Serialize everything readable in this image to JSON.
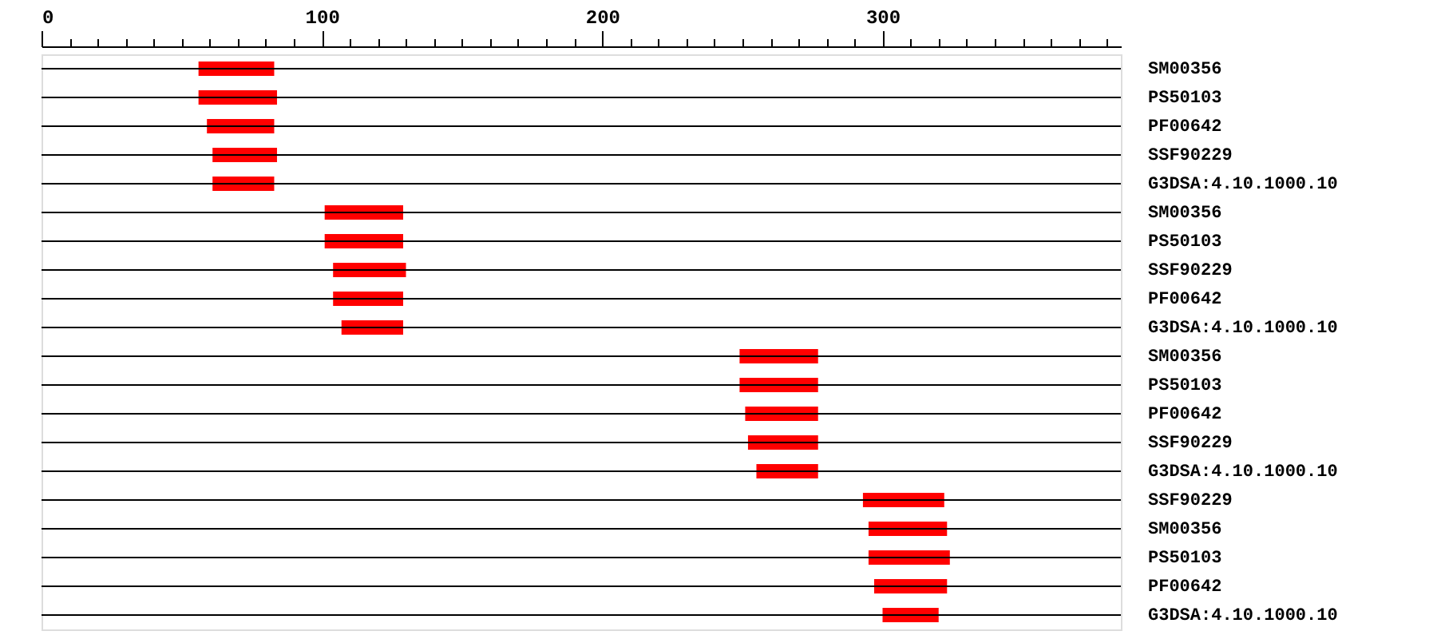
{
  "chart_data": {
    "type": "bar",
    "orientation": "horizontal",
    "color": "#ff0000",
    "categories": [
      "SM00356",
      "PS50103",
      "PF00642",
      "SSF90229",
      "G3DSA:4.10.1000.10",
      "SM00356",
      "PS50103",
      "SSF90229",
      "PF00642",
      "G3DSA:4.10.1000.10",
      "SM00356",
      "PS50103",
      "PF00642",
      "SSF90229",
      "G3DSA:4.10.1000.10",
      "SSF90229",
      "SM00356",
      "PS50103",
      "PF00642",
      "G3DSA:4.10.1000.10"
    ],
    "base": [
      56,
      56,
      59,
      61,
      61,
      101,
      101,
      104,
      104,
      107,
      249,
      249,
      251,
      252,
      255,
      293,
      295,
      295,
      297,
      300
    ],
    "values": [
      27,
      28,
      24,
      23,
      22,
      28,
      28,
      26,
      25,
      22,
      28,
      28,
      26,
      25,
      22,
      29,
      28,
      29,
      26,
      20
    ],
    "xlim": [
      0,
      385
    ],
    "xticks": [
      0,
      {
        "value": 10,
        "label": null
      },
      {
        "value": 20,
        "label": null
      },
      {
        "value": 30,
        "label": null
      },
      {
        "value": 40,
        "label": null
      },
      {
        "value": 50,
        "label": null
      },
      {
        "value": 60,
        "label": null
      },
      {
        "value": 70,
        "label": null
      },
      {
        "value": 80,
        "label": null
      },
      {
        "value": 90,
        "label": null
      },
      100,
      {
        "value": 110,
        "label": null
      },
      {
        "value": 120,
        "label": null
      },
      {
        "value": 130,
        "label": null
      },
      {
        "value": 140,
        "label": null
      },
      {
        "value": 150,
        "label": null
      },
      {
        "value": 160,
        "label": null
      },
      {
        "value": 170,
        "label": null
      },
      {
        "value": 180,
        "label": null
      },
      {
        "value": 190,
        "label": null
      },
      200,
      {
        "value": 210,
        "label": null
      },
      {
        "value": 220,
        "label": null
      },
      {
        "value": 230,
        "label": null
      },
      {
        "value": 240,
        "label": null
      },
      {
        "value": 250,
        "label": null
      },
      {
        "value": 260,
        "label": null
      },
      {
        "value": 270,
        "label": null
      },
      {
        "value": 280,
        "label": null
      },
      {
        "value": 290,
        "label": null
      },
      300,
      {
        "value": 310,
        "label": null
      },
      {
        "value": 320,
        "label": null
      },
      {
        "value": 330,
        "label": null
      },
      {
        "value": 340,
        "label": null
      },
      {
        "value": 350,
        "label": null
      },
      {
        "value": 360,
        "label": null
      },
      {
        "value": 370,
        "label": null
      },
      {
        "value": 380,
        "label": null
      }
    ]
  }
}
